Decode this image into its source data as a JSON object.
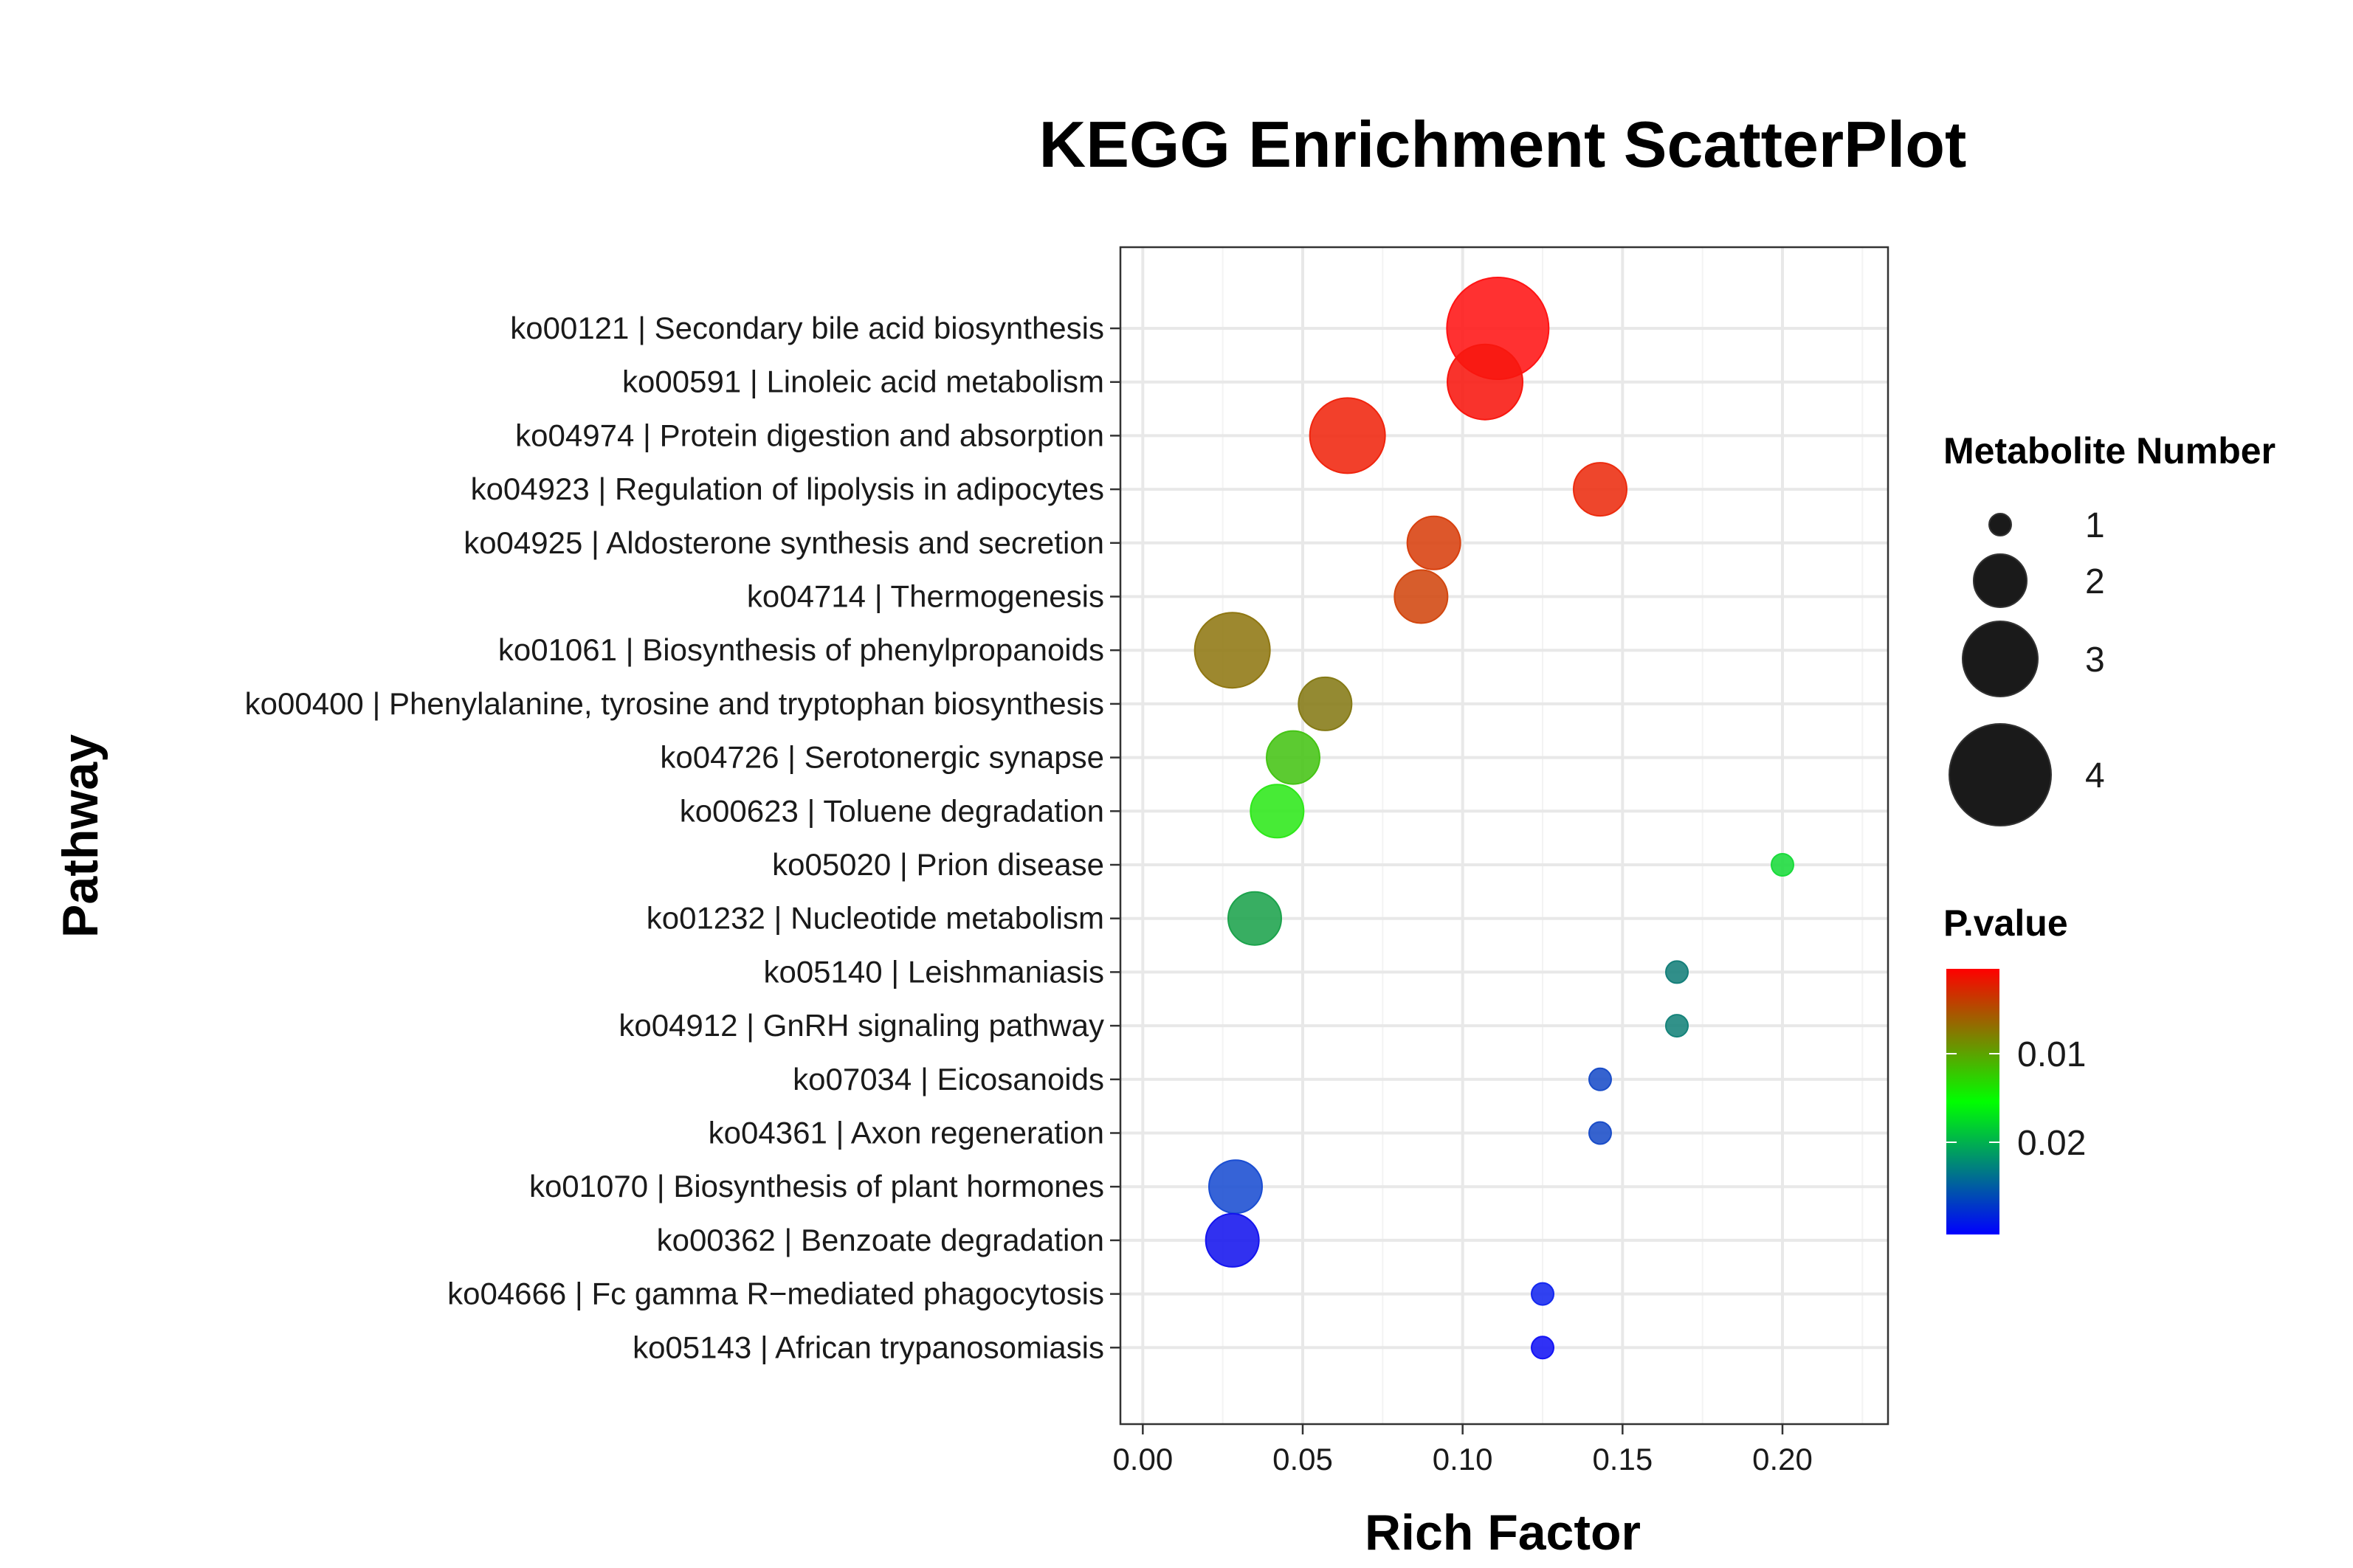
{
  "chart_data": {
    "type": "scatter",
    "title": "KEGG Enrichment ScatterPlot",
    "xlabel": "Rich Factor",
    "ylabel": "Pathway",
    "xlim": [
      -0.007,
      0.233
    ],
    "x_ticks": [
      "0.00",
      "0.05",
      "0.10",
      "0.15",
      "0.20"
    ],
    "x_tick_values": [
      0,
      0.05,
      0.1,
      0.15,
      0.2
    ],
    "grid": true,
    "legend_placement": "right",
    "categories": [
      "ko00121 | Secondary bile acid biosynthesis",
      "ko00591 | Linoleic acid metabolism",
      "ko04974 | Protein digestion and absorption",
      "ko04923 | Regulation of lipolysis in adipocytes",
      "ko04925 | Aldosterone synthesis and secretion",
      "ko04714 | Thermogenesis",
      "ko01061 | Biosynthesis of phenylpropanoids",
      "ko00400 | Phenylalanine, tyrosine and tryptophan biosynthesis",
      "ko04726 | Serotonergic synapse",
      "ko00623 | Toluene degradation",
      "ko05020 | Prion disease",
      "ko01232 | Nucleotide metabolism",
      "ko05140 | Leishmaniasis",
      "ko04912 | GnRH signaling pathway",
      "ko07034 | Eicosanoids",
      "ko04361 | Axon regeneration",
      "ko01070 | Biosynthesis of plant hormones",
      "ko00362 | Benzoate degradation",
      "ko04666 | Fc gamma R−mediated phagocytosis",
      "ko05143 | African trypanosomiasis"
    ],
    "points": [
      {
        "x": 0.111,
        "size": 4,
        "color": "#ff1414"
      },
      {
        "x": 0.107,
        "size": 3,
        "color": "#f8170f"
      },
      {
        "x": 0.064,
        "size": 3,
        "color": "#f0250e"
      },
      {
        "x": 0.143,
        "size": 2,
        "color": "#ec2c0f"
      },
      {
        "x": 0.091,
        "size": 2,
        "color": "#d8400e"
      },
      {
        "x": 0.087,
        "size": 2,
        "color": "#d2470f"
      },
      {
        "x": 0.028,
        "size": 3,
        "color": "#8f7712"
      },
      {
        "x": 0.057,
        "size": 2,
        "color": "#857a16"
      },
      {
        "x": 0.047,
        "size": 2,
        "color": "#45c415"
      },
      {
        "x": 0.042,
        "size": 2,
        "color": "#2ee81a"
      },
      {
        "x": 0.2,
        "size": 1,
        "color": "#1adb3b"
      },
      {
        "x": 0.035,
        "size": 2,
        "color": "#1ca34c"
      },
      {
        "x": 0.167,
        "size": 1,
        "color": "#157f7a"
      },
      {
        "x": 0.167,
        "size": 1,
        "color": "#16837a"
      },
      {
        "x": 0.143,
        "size": 1,
        "color": "#1a4dc8"
      },
      {
        "x": 0.143,
        "size": 1,
        "color": "#1a4dc8"
      },
      {
        "x": 0.029,
        "size": 2,
        "color": "#1a4dd2"
      },
      {
        "x": 0.028,
        "size": 2,
        "color": "#1414ee"
      },
      {
        "x": 0.125,
        "size": 1,
        "color": "#1428ef"
      },
      {
        "x": 0.125,
        "size": 1,
        "color": "#1414f5"
      }
    ],
    "size_legend": {
      "title": "Metabolite Number",
      "entries": [
        {
          "label": "1",
          "size": 1
        },
        {
          "label": "2",
          "size": 2
        },
        {
          "label": "3",
          "size": 3
        },
        {
          "label": "4",
          "size": 4
        }
      ]
    },
    "color_legend": {
      "title": "P.value",
      "tick_labels": [
        "0.01",
        "0.02"
      ],
      "tick_values": [
        0.01,
        0.02
      ],
      "colors": [
        "#ff0000",
        "#00ff00",
        "#0000ff"
      ]
    }
  }
}
